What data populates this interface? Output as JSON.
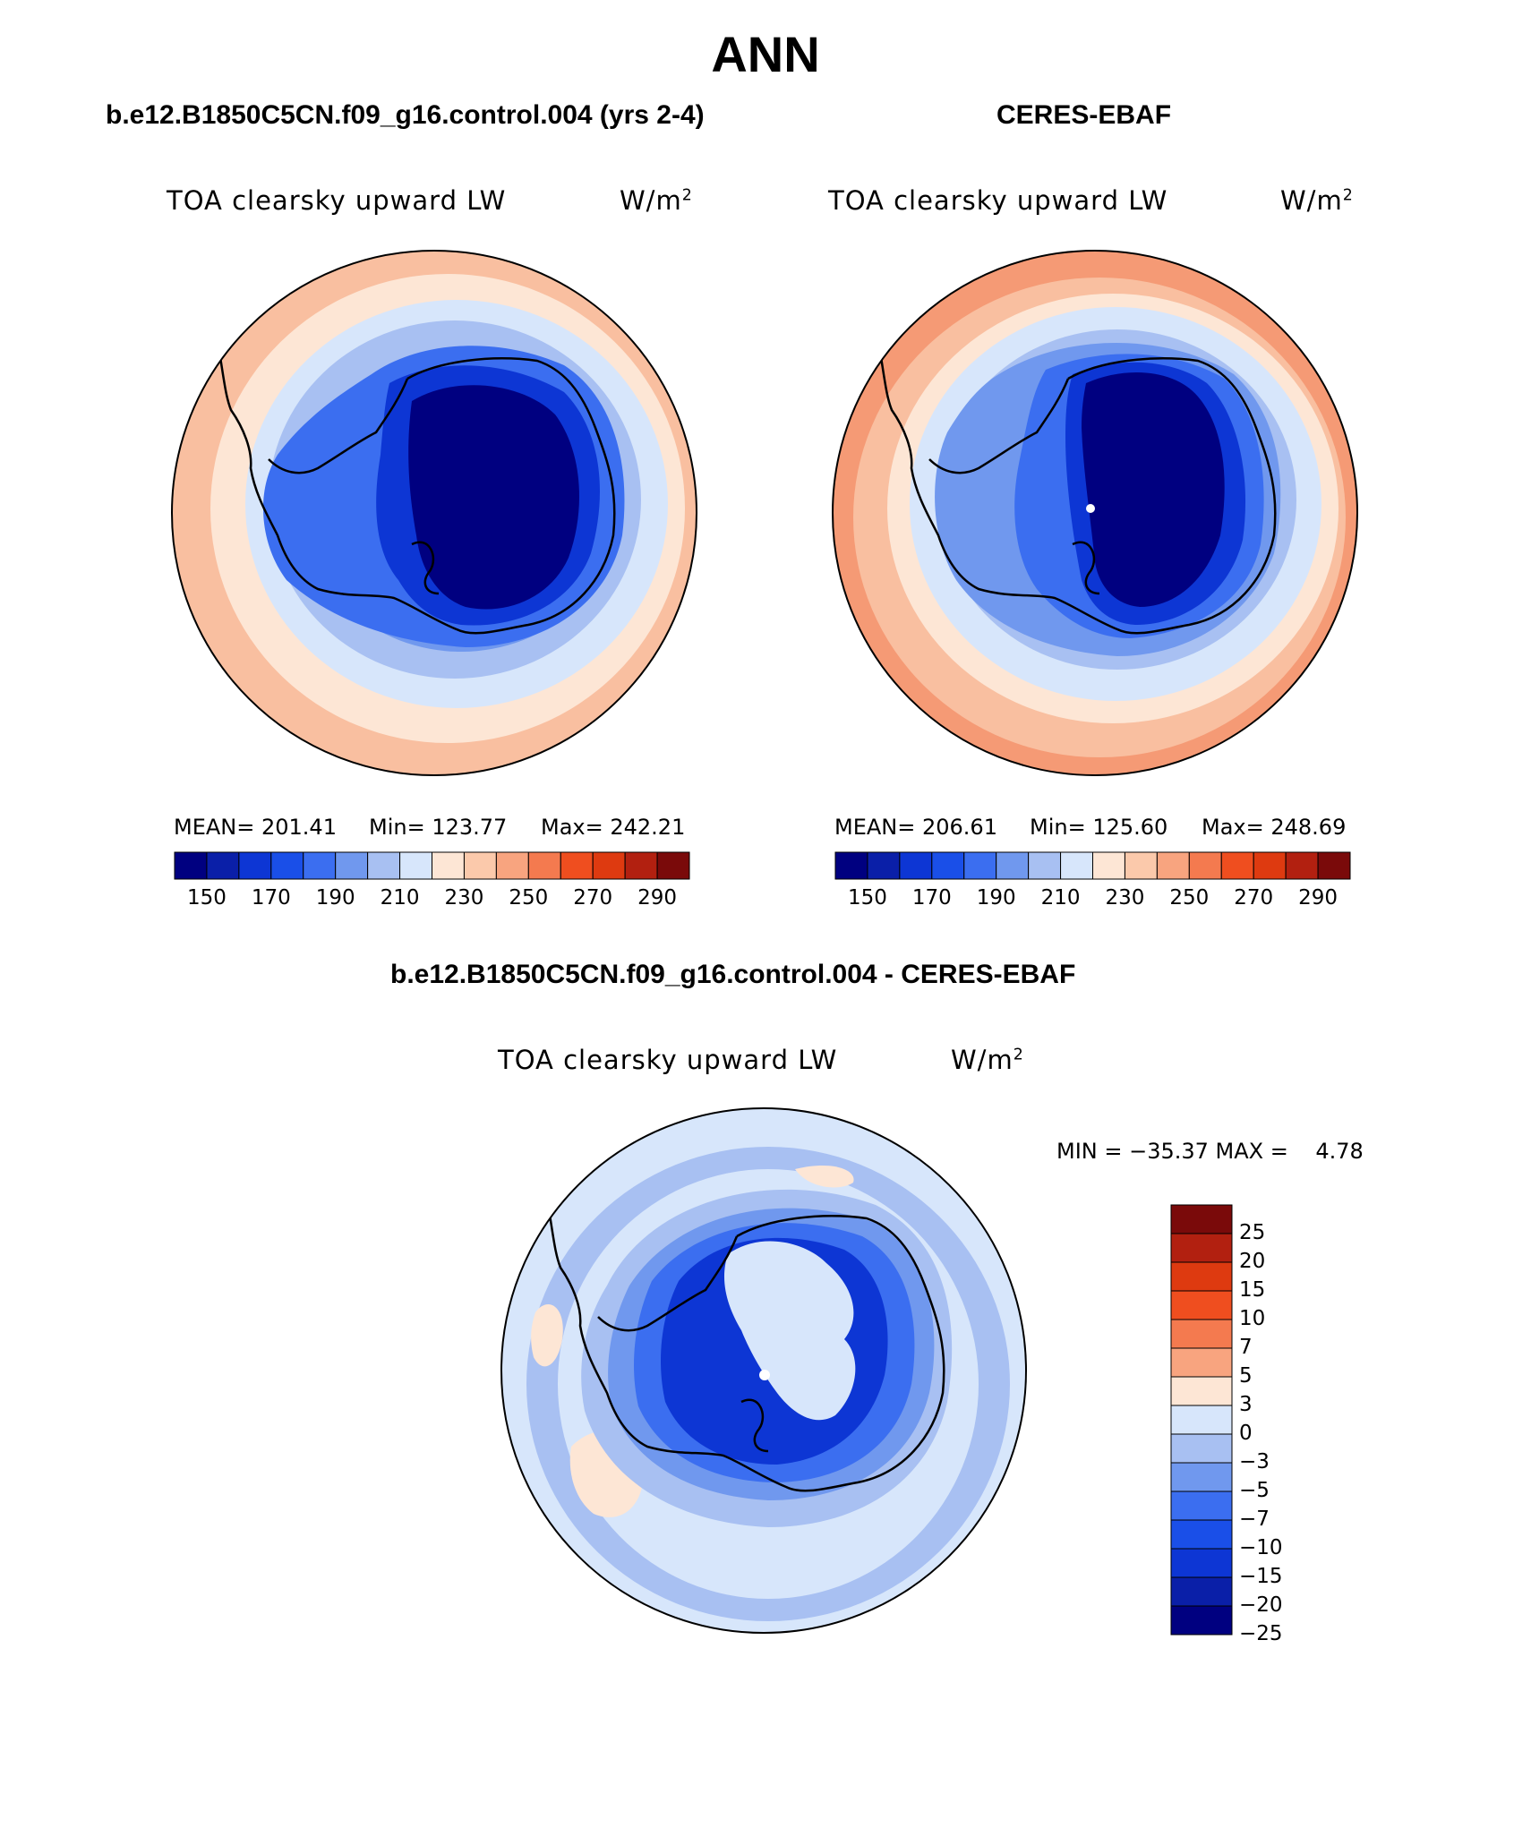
{
  "title": "ANN",
  "panels": [
    {
      "id": "model",
      "title": "b.e12.B1850C5CN.f09_g16.control.004 (yrs 2-4)",
      "variable": "TOA clearsky upward LW",
      "units_base": "W/m",
      "units_exp": "2",
      "stats": {
        "mean_label": "MEAN= 201.41",
        "min_label": "Min= 123.77",
        "max_label": "Max= 242.21"
      }
    },
    {
      "id": "obs",
      "title": "CERES-EBAF",
      "variable": "TOA clearsky upward LW",
      "units_base": "W/m",
      "units_exp": "2",
      "stats": {
        "mean_label": "MEAN= 206.61",
        "min_label": "Min= 125.60",
        "max_label": "Max= 248.69"
      }
    },
    {
      "id": "diff",
      "title": "b.e12.B1850C5CN.f09_g16.control.004 - CERES-EBAF",
      "variable": "TOA clearsky upward LW",
      "units_base": "W/m",
      "units_exp": "2",
      "stats": {
        "minmax_label": "MIN = −35.37 MAX =    4.78"
      }
    }
  ],
  "colorbars": {
    "absolute": {
      "colors": [
        "#000080",
        "#0a1fa8",
        "#0d36d4",
        "#1a4fe8",
        "#3b6ef0",
        "#7098ee",
        "#a8c0f2",
        "#d7e6fb",
        "#fde6d5",
        "#fbc9ab",
        "#f8a47f",
        "#f47a4f",
        "#ef4e1f",
        "#de3a10",
        "#b22010",
        "#7a0a0a"
      ],
      "tick_labels": [
        "150",
        "170",
        "190",
        "210",
        "230",
        "250",
        "270",
        "290"
      ]
    },
    "difference": {
      "colors": [
        "#7a0a0a",
        "#b22010",
        "#de3a10",
        "#ef4e1f",
        "#f47a4f",
        "#f8a47f",
        "#fde6d5",
        "#d7e6fb",
        "#a8c0f2",
        "#7098ee",
        "#3b6ef0",
        "#1a4fe8",
        "#0d36d4",
        "#0a1fa8",
        "#000080"
      ],
      "tick_labels": [
        "25",
        "20",
        "15",
        "10",
        "7",
        "5",
        "3",
        "0",
        "−3",
        "−5",
        "−7",
        "−10",
        "−15",
        "−20",
        "−25"
      ]
    }
  },
  "map_colors": {
    "outer_warm": "#f9bfa0",
    "peach": "#fde6d5",
    "light_blue": "#d7e6fb",
    "pale_blue": "#a8c0f2",
    "mid_blue": "#7098ee",
    "blue": "#3b6ef0",
    "deep_blue": "#0d36d4",
    "navy": "#000080",
    "coastline": "#000000"
  }
}
